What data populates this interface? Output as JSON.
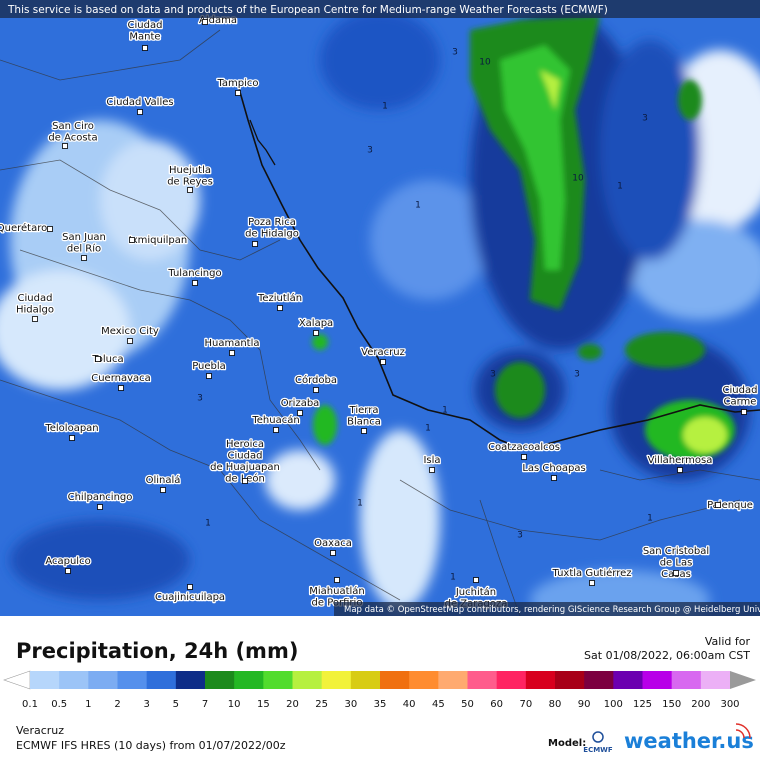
{
  "banner": "This service is based on data and products of the European Centre for Medium-range Weather Forecasts (ECMWF)",
  "attribution": "Map data © OpenStreetMap contributors, rendering GIScience Research Group @ Heidelberg University",
  "cities": [
    {
      "lines": [
        "Aldama"
      ]
    },
    {
      "lines": [
        "Ciudad",
        "Mante"
      ]
    },
    {
      "lines": [
        "Tampico"
      ]
    },
    {
      "lines": [
        "Ciudad Valles"
      ]
    },
    {
      "lines": [
        "San Ciro",
        "de Acosta"
      ]
    },
    {
      "lines": [
        "Huejutla",
        "de Reyes"
      ]
    },
    {
      "lines": [
        "Poza Rica",
        "de Hidalgo"
      ]
    },
    {
      "lines": [
        "Querétaro"
      ]
    },
    {
      "lines": [
        "San Juan",
        "del Río"
      ]
    },
    {
      "lines": [
        "Ixmiquilpan"
      ]
    },
    {
      "lines": [
        "Tulancingo"
      ]
    },
    {
      "lines": [
        "Teziutlán"
      ]
    },
    {
      "lines": [
        "Ciudad",
        "Hidalgo"
      ]
    },
    {
      "lines": [
        "Xalapa"
      ]
    },
    {
      "lines": [
        "Mexico City"
      ]
    },
    {
      "lines": [
        "Huamantla"
      ]
    },
    {
      "lines": [
        "Veracruz"
      ]
    },
    {
      "lines": [
        "Toluca"
      ]
    },
    {
      "lines": [
        "Puebla"
      ]
    },
    {
      "lines": [
        "Cuernavaca"
      ]
    },
    {
      "lines": [
        "Córdoba"
      ]
    },
    {
      "lines": [
        "Orizaba"
      ]
    },
    {
      "lines": [
        "Tierra",
        "Blanca"
      ]
    },
    {
      "lines": [
        "Tehuacán"
      ]
    },
    {
      "lines": [
        "Teloloapan"
      ]
    },
    {
      "lines": [
        "Heroica",
        "Ciudad",
        "de Huajuapan",
        "de León"
      ]
    },
    {
      "lines": [
        "Coatzacoalcos"
      ]
    },
    {
      "lines": [
        "Isla"
      ]
    },
    {
      "lines": [
        "Villahermosa"
      ]
    },
    {
      "lines": [
        "Las Choapas"
      ]
    },
    {
      "lines": [
        "Olinalá"
      ]
    },
    {
      "lines": [
        "Chilpancingo"
      ]
    },
    {
      "lines": [
        "Palenque"
      ]
    },
    {
      "lines": [
        "Oaxaca"
      ]
    },
    {
      "lines": [
        "San Cristobal",
        "de Las",
        "Casas"
      ]
    },
    {
      "lines": [
        "Acapulco"
      ]
    },
    {
      "lines": [
        "Tuxtla Gutiérrez"
      ]
    },
    {
      "lines": [
        "Juchitán",
        "de Zaragoza"
      ]
    },
    {
      "lines": [
        "Miahuatlán",
        "de Porfirio"
      ]
    },
    {
      "lines": [
        "Cuajinicuilapa"
      ]
    },
    {
      "lines": [
        "Ciudad",
        "Carme"
      ]
    }
  ],
  "contour_labels": [
    3,
    10,
    1,
    3,
    10,
    1,
    3,
    1,
    3,
    3,
    1,
    1,
    1,
    1,
    3,
    1,
    3,
    1
  ],
  "title": "Precipitation, 24h (mm)",
  "valid_label": "Valid for",
  "valid_time": "Sat 01/08/2022, 06:00am CST",
  "legend": {
    "levels": [
      0.1,
      0.5,
      1,
      2,
      3,
      5,
      7,
      10,
      15,
      20,
      25,
      30,
      35,
      40,
      45,
      50,
      60,
      70,
      80,
      90,
      100,
      125,
      150,
      200,
      300
    ],
    "colors": [
      "#b6d6fb",
      "#9cc4f7",
      "#7cacf2",
      "#5590ec",
      "#2f6fdb",
      "#0e2d88",
      "#1c8a1c",
      "#24b824",
      "#52dc2e",
      "#b6f040",
      "#f2f23a",
      "#d8cc14",
      "#f07010",
      "#ff8c30",
      "#ffaa70",
      "#ff5c8c",
      "#ff2462",
      "#d8001e",
      "#a80018",
      "#7c0040",
      "#6c00b0",
      "#b800e8",
      "#d868f0",
      "#ecb0f6"
    ],
    "under_color": "#ffffff",
    "over_color": "#9a9a9a"
  },
  "location": "Veracruz",
  "model_run": "ECMWF IFS HRES (10 days) from 01/07/2022/00z",
  "model_label": "Model:",
  "model_logo": "ECMWF",
  "brand": "weather.us"
}
